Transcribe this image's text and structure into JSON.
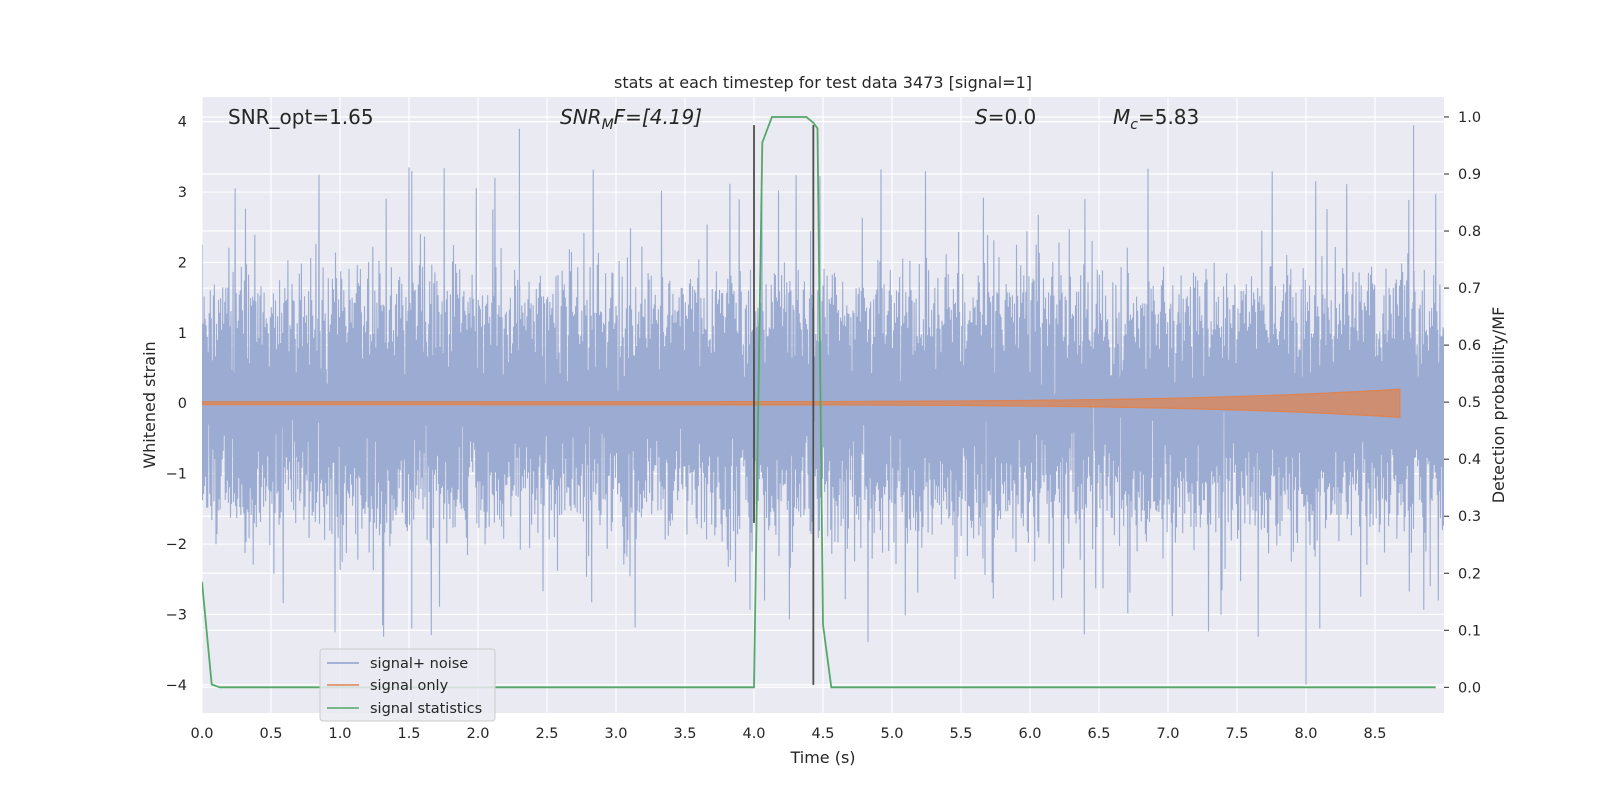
{
  "chart_data": {
    "type": "line",
    "title": "stats at each timestep for test data 3473 [signal=1]",
    "xlabel": "Time (s)",
    "ylabel": "Whitened strain",
    "y2label": "Detection probability/MF",
    "xlim": [
      0.0,
      9.0
    ],
    "ylim": [
      -4.4,
      4.35
    ],
    "y2lim": [
      -0.045,
      1.035
    ],
    "xticks": [
      "0.0",
      "0.5",
      "1.0",
      "1.5",
      "2.0",
      "2.5",
      "3.0",
      "3.5",
      "4.0",
      "4.5",
      "5.0",
      "5.5",
      "6.0",
      "6.5",
      "7.0",
      "7.5",
      "8.0",
      "8.5"
    ],
    "yticks": [
      "4",
      "3",
      "2",
      "1",
      "0",
      "−1",
      "−2",
      "−3",
      "−4"
    ],
    "y2ticks": [
      "1.0",
      "0.9",
      "0.8",
      "0.7",
      "0.6",
      "0.5",
      "0.4",
      "0.3",
      "0.2",
      "0.1",
      "0.0"
    ],
    "grid": true,
    "annotations": {
      "snr_opt": "SNR_opt=1.65",
      "snr_mf_prefix": "SNR",
      "snr_mf_sub": "M",
      "snr_mf_suffix": "F=[4.19]",
      "s_sym": "S",
      "s_val": "=0.0",
      "mc_sym": "M",
      "mc_sub": "c",
      "mc_val": "=5.83"
    },
    "legend": {
      "placement": "lower-left",
      "entries": [
        {
          "label": "signal+ noise",
          "color": "#8da0cb"
        },
        {
          "label": "signal only",
          "color": "#dd8452"
        },
        {
          "label": "signal statistics",
          "color": "#55a868"
        }
      ]
    },
    "series": [
      {
        "name": "signal+ noise",
        "axis": "left",
        "color": "#97a8cf",
        "description_envelope": {
          "x_range": [
            0.0,
            9.0
          ],
          "typical_abs": 1.7,
          "peak_max": 3.95,
          "peak_min": -4.0
        }
      },
      {
        "name": "signal only",
        "axis": "left",
        "color": "#dd8452",
        "chirp": {
          "start": 0.0,
          "end": 8.68,
          "start_amplitude": 0.02,
          "end_amplitude": 0.2
        }
      },
      {
        "name": "signal statistics",
        "axis": "right",
        "color": "#55a868",
        "x": [
          0.0,
          0.07,
          0.13,
          0.5,
          1.0,
          1.5,
          2.0,
          2.5,
          3.0,
          3.5,
          3.93,
          4.0,
          4.06,
          4.13,
          4.2,
          4.3,
          4.38,
          4.43,
          4.46,
          4.5,
          4.56,
          4.7,
          5.0,
          6.0,
          7.0,
          8.0,
          8.94
        ],
        "values": [
          0.185,
          0.005,
          0.0,
          0.0,
          0.0,
          0.0,
          0.0,
          0.0,
          0.0,
          0.0,
          0.0,
          0.0,
          0.955,
          1.0,
          1.0,
          1.0,
          1.0,
          0.99,
          0.98,
          0.11,
          0.0,
          0.0,
          0.0,
          0.0,
          0.0,
          0.0,
          0.0
        ]
      }
    ],
    "vertical_markers": [
      {
        "x": 4.0,
        "y_top": 3.95,
        "y_bottom": -1.7,
        "color": "#4d4d4d"
      },
      {
        "x": 4.43,
        "y_top": 3.95,
        "y_bottom": -4.0,
        "color": "#4d4d4d"
      }
    ]
  }
}
